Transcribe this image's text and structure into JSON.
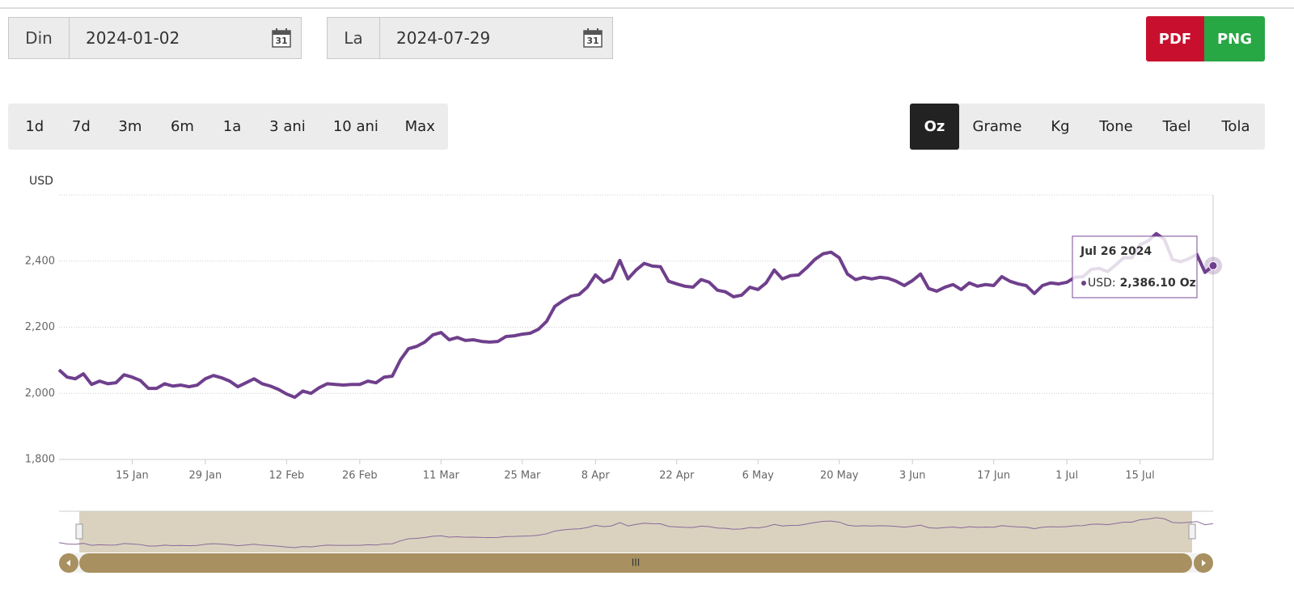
{
  "date_range": {
    "from_label": "Din",
    "from_value": "2024-01-02",
    "to_label": "La",
    "to_value": "2024-07-29",
    "icon_text": "31"
  },
  "export_buttons": [
    "PDF",
    "PNG"
  ],
  "period_buttons": [
    "1d",
    "7d",
    "3m",
    "6m",
    "1a",
    "3 ani",
    "10 ani",
    "Max"
  ],
  "unit_buttons": [
    "Oz",
    "Grame",
    "Kg",
    "Tone",
    "Tael",
    "Tola"
  ],
  "active_unit": "Oz",
  "scrollbar_grip": "III",
  "chart_data": {
    "type": "line",
    "y_axis_label": "USD",
    "color": "#6f3f8c",
    "grid": true,
    "x": [
      "2024-01-02",
      "2024-01-03",
      "2024-01-04",
      "2024-01-05",
      "2024-01-08",
      "2024-01-09",
      "2024-01-10",
      "2024-01-11",
      "2024-01-12",
      "2024-01-16",
      "2024-01-17",
      "2024-01-18",
      "2024-01-19",
      "2024-01-22",
      "2024-01-23",
      "2024-01-24",
      "2024-01-25",
      "2024-01-26",
      "2024-01-29",
      "2024-01-30",
      "2024-01-31",
      "2024-02-01",
      "2024-02-02",
      "2024-02-05",
      "2024-02-06",
      "2024-02-07",
      "2024-02-08",
      "2024-02-09",
      "2024-02-12",
      "2024-02-13",
      "2024-02-14",
      "2024-02-15",
      "2024-02-16",
      "2024-02-20",
      "2024-02-21",
      "2024-02-22",
      "2024-02-23",
      "2024-02-26",
      "2024-02-27",
      "2024-02-28",
      "2024-02-29",
      "2024-03-01",
      "2024-03-04",
      "2024-03-05",
      "2024-03-06",
      "2024-03-07",
      "2024-03-08",
      "2024-03-11",
      "2024-03-12",
      "2024-03-13",
      "2024-03-14",
      "2024-03-15",
      "2024-03-18",
      "2024-03-19",
      "2024-03-20",
      "2024-03-21",
      "2024-03-22",
      "2024-03-25",
      "2024-03-26",
      "2024-03-27",
      "2024-03-28",
      "2024-04-01",
      "2024-04-02",
      "2024-04-03",
      "2024-04-04",
      "2024-04-05",
      "2024-04-08",
      "2024-04-09",
      "2024-04-10",
      "2024-04-11",
      "2024-04-12",
      "2024-04-15",
      "2024-04-16",
      "2024-04-17",
      "2024-04-18",
      "2024-04-19",
      "2024-04-22",
      "2024-04-23",
      "2024-04-24",
      "2024-04-25",
      "2024-04-26",
      "2024-04-29",
      "2024-04-30",
      "2024-05-01",
      "2024-05-02",
      "2024-05-03",
      "2024-05-06",
      "2024-05-07",
      "2024-05-08",
      "2024-05-09",
      "2024-05-10",
      "2024-05-13",
      "2024-05-14",
      "2024-05-15",
      "2024-05-16",
      "2024-05-17",
      "2024-05-20",
      "2024-05-21",
      "2024-05-22",
      "2024-05-23",
      "2024-05-24",
      "2024-05-28",
      "2024-05-29",
      "2024-05-30",
      "2024-05-31",
      "2024-06-03",
      "2024-06-04",
      "2024-06-05",
      "2024-06-06",
      "2024-06-07",
      "2024-06-10",
      "2024-06-11",
      "2024-06-12",
      "2024-06-13",
      "2024-06-14",
      "2024-06-17",
      "2024-06-18",
      "2024-06-20",
      "2024-06-21",
      "2024-06-24",
      "2024-06-25",
      "2024-06-26",
      "2024-06-27",
      "2024-06-28",
      "2024-07-01",
      "2024-07-02",
      "2024-07-03",
      "2024-07-05",
      "2024-07-08",
      "2024-07-09",
      "2024-07-10",
      "2024-07-11",
      "2024-07-12",
      "2024-07-15",
      "2024-07-16",
      "2024-07-17",
      "2024-07-18",
      "2024-07-19",
      "2024-07-22",
      "2024-07-23",
      "2024-07-24",
      "2024-07-25",
      "2024-07-26"
    ],
    "values": [
      2071,
      2049,
      2044,
      2059,
      2027,
      2037,
      2029,
      2032,
      2056,
      2049,
      2039,
      2015,
      2015,
      2029,
      2022,
      2025,
      2020,
      2025,
      2044,
      2054,
      2047,
      2037,
      2020,
      2032,
      2044,
      2029,
      2022,
      2012,
      1998,
      1988,
      2007,
      2000,
      2017,
      2029,
      2027,
      2025,
      2027,
      2027,
      2037,
      2032,
      2049,
      2052,
      2101,
      2135,
      2142,
      2155,
      2177,
      2184,
      2162,
      2169,
      2160,
      2162,
      2157,
      2155,
      2157,
      2172,
      2174,
      2179,
      2182,
      2194,
      2218,
      2263,
      2280,
      2294,
      2299,
      2321,
      2358,
      2336,
      2348,
      2402,
      2346,
      2373,
      2393,
      2385,
      2383,
      2339,
      2331,
      2324,
      2321,
      2344,
      2336,
      2312,
      2307,
      2292,
      2297,
      2321,
      2314,
      2334,
      2373,
      2346,
      2356,
      2358,
      2380,
      2405,
      2422,
      2427,
      2410,
      2361,
      2344,
      2351,
      2346,
      2351,
      2348,
      2339,
      2326,
      2341,
      2361,
      2317,
      2309,
      2321,
      2329,
      2314,
      2334,
      2324,
      2329,
      2326,
      2353,
      2339,
      2331,
      2326,
      2302,
      2326,
      2334,
      2331,
      2336,
      2351,
      2353,
      2375,
      2378,
      2368,
      2388,
      2410,
      2410,
      2449,
      2461,
      2483,
      2466,
      2405,
      2398,
      2407,
      2420,
      2366,
      2386.1
    ],
    "xlim": [
      "2024-01-02",
      "2024-07-26"
    ],
    "xticks": [
      {
        "value": "2024-01-15",
        "label": "15 Jan"
      },
      {
        "value": "2024-01-29",
        "label": "29 Jan"
      },
      {
        "value": "2024-02-12",
        "label": "12 Feb"
      },
      {
        "value": "2024-02-26",
        "label": "26 Feb"
      },
      {
        "value": "2024-03-11",
        "label": "11 Mar"
      },
      {
        "value": "2024-03-25",
        "label": "25 Mar"
      },
      {
        "value": "2024-04-08",
        "label": "8 Apr"
      },
      {
        "value": "2024-04-22",
        "label": "22 Apr"
      },
      {
        "value": "2024-05-06",
        "label": "6 May"
      },
      {
        "value": "2024-05-20",
        "label": "20 May"
      },
      {
        "value": "2024-06-03",
        "label": "3 Jun"
      },
      {
        "value": "2024-06-17",
        "label": "17 Jun"
      },
      {
        "value": "2024-07-01",
        "label": "1 Jul"
      },
      {
        "value": "2024-07-15",
        "label": "15 Jul"
      }
    ],
    "ylim": [
      1800,
      2600
    ],
    "yticks": [
      {
        "value": 1800,
        "label": "1,800"
      },
      {
        "value": 2000,
        "label": "2,000"
      },
      {
        "value": 2200,
        "label": "2,200"
      },
      {
        "value": 2400,
        "label": "2,400"
      }
    ],
    "tooltip": {
      "title": "Jul 26 2024",
      "name": "USD:",
      "value_label": "2,386.10",
      "unit": "Oz"
    }
  }
}
